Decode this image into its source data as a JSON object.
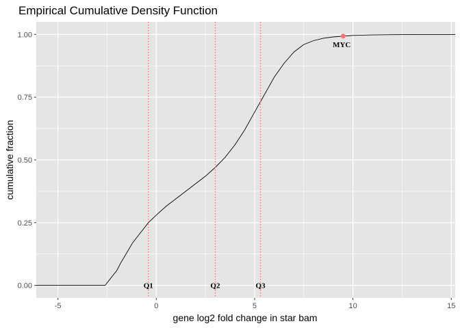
{
  "chart_data": {
    "type": "line",
    "title": "Empirical Cumulative Density Function",
    "xlabel": "gene log2 fold change in star bam",
    "ylabel": "cumulative fraction",
    "xlim": [
      -6.1,
      15.2
    ],
    "ylim": [
      -0.05,
      1.05
    ],
    "x_ticks": [
      -5,
      0,
      5,
      10,
      15
    ],
    "x_tick_labels": [
      "-5",
      "0",
      "5",
      "10",
      "15"
    ],
    "y_ticks": [
      0.0,
      0.25,
      0.5,
      0.75,
      1.0
    ],
    "y_tick_labels": [
      "0.00",
      "0.25",
      "0.50",
      "0.75",
      "1.00"
    ],
    "grid": true,
    "background": "#e5e5e5",
    "grid_color": "#ffffff",
    "line_color": "#000000",
    "quartile_color": "#f8766d",
    "highlight_color": "#f8766d",
    "series": [
      {
        "x": [
          -6.1,
          -2.6,
          -2.5,
          -2.4,
          -2.2,
          -2.0,
          -1.8,
          -1.5,
          -1.2,
          -0.8,
          -0.4,
          0.0,
          0.5,
          1.0,
          1.5,
          2.0,
          2.5,
          3.0,
          3.5,
          4.0,
          4.5,
          5.0,
          5.5,
          6.0,
          6.5,
          7.0,
          7.5,
          8.0,
          8.5,
          9.0,
          9.5,
          10.0,
          11.0,
          12.0,
          13.0,
          15.2
        ],
        "y": [
          0.0,
          0.0,
          0.01,
          0.02,
          0.04,
          0.06,
          0.09,
          0.13,
          0.17,
          0.21,
          0.25,
          0.28,
          0.315,
          0.345,
          0.375,
          0.405,
          0.435,
          0.47,
          0.51,
          0.56,
          0.62,
          0.69,
          0.76,
          0.83,
          0.885,
          0.93,
          0.96,
          0.975,
          0.985,
          0.99,
          0.993,
          0.996,
          0.998,
          0.999,
          1.0,
          1.0
        ]
      }
    ],
    "quartiles": [
      {
        "label": "Q1",
        "x": -0.4
      },
      {
        "label": "Q2",
        "x": 3.0
      },
      {
        "label": "Q3",
        "x": 5.3
      }
    ],
    "highlight": {
      "label": "MYC",
      "x": 9.5,
      "y": 0.993
    }
  }
}
